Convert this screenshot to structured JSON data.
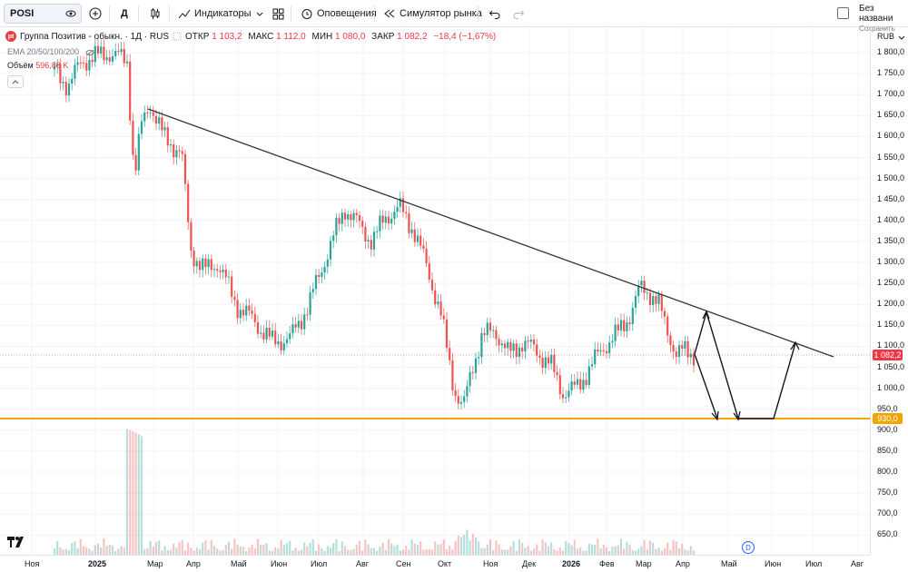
{
  "toolbar": {
    "symbol": "POSI",
    "interval": "Д",
    "indicators_label": "Индикаторы",
    "alerts_label": "Оповещения",
    "replay_label": "Симулятор рынка",
    "layout_name": "Без названи",
    "save_label": "Сохранить"
  },
  "legend": {
    "title": "Группа Позитив - обыкн. · 1Д · RUS",
    "logo_text": "pt",
    "open_k": "ОТКР",
    "open_v": "1 103,2",
    "high_k": "МАКС",
    "high_v": "1 112,0",
    "low_k": "МИН",
    "low_v": "1 080,0",
    "close_k": "ЗАКР",
    "close_v": "1 082,2",
    "change": "−18,4 (−1,67%)",
    "ema": "EMA 20/50/100/200",
    "volume_k": "Объём",
    "volume_v": "596,88 K"
  },
  "colors": {
    "up": "#26a69a",
    "down": "#ef5350",
    "support": "#f0a500",
    "trend": "#333333",
    "current": "#f23645"
  },
  "price_axis": {
    "currency": "RUB",
    "ticks": [
      "1 800,0",
      "1 750,0",
      "1 700,0",
      "1 650,0",
      "1 600,0",
      "1 550,0",
      "1 500,0",
      "1 450,0",
      "1 400,0",
      "1 350,0",
      "1 300,0",
      "1 250,0",
      "1 200,0",
      "1 150,0",
      "1 100,0",
      "1 050,0",
      "1 000,0",
      "950,0",
      "900,0",
      "850,0",
      "800,0",
      "750,0",
      "700,0",
      "650,0"
    ],
    "current_price": "1 082,2",
    "support_price": "930,0"
  },
  "time_axis": [
    "Ноя",
    "2025",
    "Мар",
    "Апр",
    "Май",
    "Июн",
    "Июл",
    "Авг",
    "Сен",
    "Окт",
    "Ноя",
    "Дек",
    "2026",
    "Фев",
    "Мар",
    "Апр",
    "Май",
    "Июн",
    "Июл",
    "Авг"
  ],
  "badge": "D"
}
